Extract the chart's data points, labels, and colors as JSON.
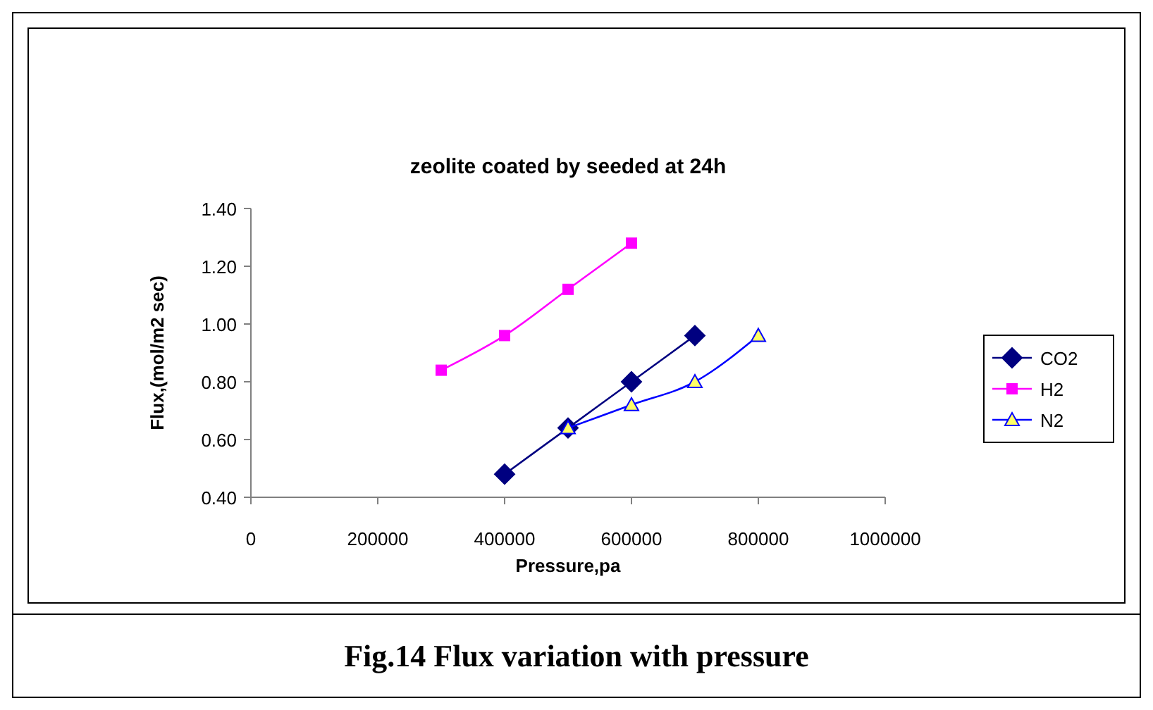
{
  "chart_data": {
    "type": "line",
    "title": "zeolite coated by seeded at 24h",
    "xlabel": "Pressure,pa",
    "ylabel": "Flux,(mol/m2 sec)",
    "annotations": [
      "Fig.14 Flux variation with pressure"
    ],
    "xlim": [
      0,
      1000000
    ],
    "xticks": [
      0,
      200000,
      400000,
      600000,
      800000,
      1000000
    ],
    "ylim": [
      0.4,
      1.4
    ],
    "yticks": [
      {
        "value": 0.4,
        "label": "0.40"
      },
      {
        "value": 0.6,
        "label": "0.60"
      },
      {
        "value": 0.8,
        "label": "0.80"
      },
      {
        "value": 1.0,
        "label": "1.00"
      },
      {
        "value": 1.2,
        "label": "1.20"
      },
      {
        "value": 1.4,
        "label": "1.40"
      }
    ],
    "grid": false,
    "legend": "right",
    "series": [
      {
        "name": "CO2",
        "color": "#000080",
        "marker": "diamond",
        "x": [
          400000,
          500000,
          600000,
          700000
        ],
        "values": [
          0.48,
          0.64,
          0.8,
          0.96
        ]
      },
      {
        "name": "H2",
        "color": "#ff00ff",
        "marker": "square",
        "x": [
          300000,
          400000,
          500000,
          600000
        ],
        "values": [
          0.84,
          0.96,
          1.12,
          1.28
        ]
      },
      {
        "name": "N2",
        "color": "#0000ff",
        "marker": "triangle",
        "x": [
          500000,
          600000,
          700000,
          800000
        ],
        "values": [
          0.64,
          0.72,
          0.8,
          0.96
        ]
      }
    ]
  }
}
